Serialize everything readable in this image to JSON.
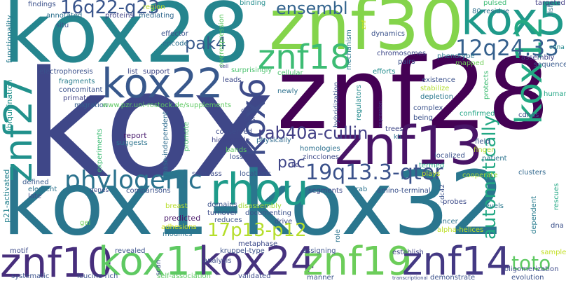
{
  "words": [
    {
      "text": "kox",
      "color": "#3f4788"
    },
    {
      "text": "kox28",
      "color": "#25858e"
    },
    {
      "text": "znf30",
      "color": "#84d44b"
    },
    {
      "text": "znf28",
      "color": "#440154"
    },
    {
      "text": "kox1-kox32",
      "color": "#2a768e"
    },
    {
      "text": "kox5",
      "color": "#1f9a8a"
    },
    {
      "text": "znf27",
      "color": "#21918c"
    },
    {
      "text": "kox22",
      "color": "#38588c"
    },
    {
      "text": "kox6",
      "color": "#3e4c8a"
    },
    {
      "text": "kox12",
      "color": "#23a983"
    },
    {
      "text": "znf13",
      "color": "#481467"
    },
    {
      "text": "znf18",
      "color": "#3dbc74"
    },
    {
      "text": "rhou",
      "color": "#1e9b8a"
    },
    {
      "text": "phylogenic",
      "color": "#2c738e"
    },
    {
      "text": "12q24.33",
      "color": "#35608d"
    },
    {
      "text": "16q22-q23",
      "color": "#39558c"
    },
    {
      "text": "znf10",
      "color": "#472e7c"
    },
    {
      "text": "kox11",
      "color": "#5ec962"
    },
    {
      "text": "kox24",
      "color": "#46327e"
    },
    {
      "text": "znf19",
      "color": "#6ccd5a"
    },
    {
      "text": "znf14",
      "color": "#443983"
    },
    {
      "text": "19q13.3-qter",
      "color": "#3b528b"
    },
    {
      "text": "rab40a-cullin",
      "color": "#424086"
    },
    {
      "text": "ensembl",
      "color": "#33638d"
    },
    {
      "text": "pak4",
      "color": "#38598c"
    },
    {
      "text": "17p13-p12",
      "color": "#b5de2b"
    },
    {
      "text": "automatically",
      "color": "#22a884"
    },
    {
      "text": "toto",
      "color": "#5ec962"
    },
    {
      "text": "pac",
      "color": "#404688"
    },
    {
      "text": "functionality",
      "color": "#287c8e"
    },
    {
      "text": "ubiquitination",
      "color": "#21918c"
    },
    {
      "text": "p21-activated",
      "color": "#26828e"
    },
    {
      "text": "findings",
      "color": "#3b518b"
    },
    {
      "text": "annotated",
      "color": "#2d708e"
    },
    {
      "text": "situ",
      "color": "#3a548c"
    },
    {
      "text": "proteins",
      "color": "#414487"
    },
    {
      "text": "mediating",
      "color": "#31688e"
    },
    {
      "text": "region",
      "color": "#bddf26"
    },
    {
      "text": "effector",
      "color": "#3b528b"
    },
    {
      "text": "encode",
      "color": "#2e6e8e"
    },
    {
      "text": "overexpression",
      "color": "#5ec962"
    },
    {
      "text": "binding",
      "color": "#228c8d"
    },
    {
      "text": "znf",
      "color": "#d2e21b"
    },
    {
      "text": "mechanism",
      "color": "#2a778e"
    },
    {
      "text": "dynamics",
      "color": "#3b528b"
    },
    {
      "text": "pulsed",
      "color": "#3dbc74"
    },
    {
      "text": "80-residue",
      "color": "#2d708e"
    },
    {
      "text": "fish",
      "color": "#2c738e"
    },
    {
      "text": "targeted",
      "color": "#433e85"
    },
    {
      "text": "cdna",
      "color": "#23898e"
    },
    {
      "text": "phenotype",
      "color": "#2a788e"
    },
    {
      "text": "assembly",
      "color": "#414487"
    },
    {
      "text": "sequences",
      "color": "#375a8c"
    },
    {
      "text": "chromosomes",
      "color": "#3e4989"
    },
    {
      "text": "pairs",
      "color": "#3b518b"
    },
    {
      "text": "mapped",
      "color": "#6ece58"
    },
    {
      "text": "cell",
      "color": "#414487"
    },
    {
      "text": "electrophoresis",
      "color": "#3b518b"
    },
    {
      "text": "list",
      "color": "#3e4a89"
    },
    {
      "text": "support",
      "color": "#3f4889"
    },
    {
      "text": "surprisingly",
      "color": "#4ac16d"
    },
    {
      "text": "cellular",
      "color": "#4ac16d"
    },
    {
      "text": "efforts",
      "color": "#228d8d"
    },
    {
      "text": "existence",
      "color": "#3b518b"
    },
    {
      "text": "protects",
      "color": "#3fbc73"
    },
    {
      "text": "human",
      "color": "#21a585"
    },
    {
      "text": "fragments",
      "color": "#287d8e"
    },
    {
      "text": "leads",
      "color": "#3e4a89"
    },
    {
      "text": "concomitant",
      "color": "#3b518b"
    },
    {
      "text": "newly",
      "color": "#2d718e"
    },
    {
      "text": "stabilize",
      "color": "#b0dd2f"
    },
    {
      "text": "primate",
      "color": "#414487"
    },
    {
      "text": "migration",
      "color": "#355f8d"
    },
    {
      "text": "hybridization",
      "color": "#3b518b"
    },
    {
      "text": "depletion",
      "color": "#2a788e"
    },
    {
      "text": "complex",
      "color": "#3b528b"
    },
    {
      "text": "www.pzr.uni-rostock.de/supplements",
      "color": "#5ec962"
    },
    {
      "text": "regulators",
      "color": "#238a8d"
    },
    {
      "text": "being",
      "color": "#3b518b"
    },
    {
      "text": "confirmed",
      "color": "#21a585"
    },
    {
      "text": "cdnas",
      "color": "#3b518b"
    },
    {
      "text": "data",
      "color": "#3e4c8a"
    },
    {
      "text": "cys",
      "color": "#3e4c8a"
    },
    {
      "text": "expression",
      "color": "#443983"
    },
    {
      "text": "trees",
      "color": "#3f4788"
    },
    {
      "text": "kb",
      "color": "#2c728e"
    },
    {
      "text": "report",
      "color": "#481b6d"
    },
    {
      "text": "conserved",
      "color": "#3e4c8a"
    },
    {
      "text": "high-grade",
      "color": "#404588"
    },
    {
      "text": "physically",
      "color": "#2f6b8e"
    },
    {
      "text": "suggests",
      "color": "#2c738e"
    },
    {
      "text": "kinase-independent",
      "color": "#2f6c8e"
    },
    {
      "text": "promote",
      "color": "#4ac16d"
    },
    {
      "text": "experiments",
      "color": "#3dbc74"
    },
    {
      "text": "homologies",
      "color": "#2d708e"
    },
    {
      "text": "zincclones",
      "color": "#3e4a89"
    },
    {
      "text": "field",
      "color": "#3b528b"
    },
    {
      "text": "bands",
      "color": "#5ec962"
    },
    {
      "text": "loss",
      "color": "#3b518b"
    },
    {
      "text": "localized",
      "color": "#3b528b"
    },
    {
      "text": "finger",
      "color": "#b5de2b"
    },
    {
      "text": "patient",
      "color": "#2c738e"
    },
    {
      "text": "termed",
      "color": "#22a785"
    },
    {
      "text": "plays",
      "color": "#bddf26"
    },
    {
      "text": "lie",
      "color": "#414487"
    },
    {
      "text": "subclass",
      "color": "#3e4c8a"
    },
    {
      "text": "locations",
      "color": "#3b528b"
    },
    {
      "text": "cooperate",
      "color": "#a5db36"
    },
    {
      "text": "clusters",
      "color": "#31688e"
    },
    {
      "text": "defined",
      "color": "#38598c"
    },
    {
      "text": "element",
      "color": "#2c738e"
    },
    {
      "text": "genes",
      "color": "#3e4c8a"
    },
    {
      "text": "comparisons",
      "color": "#3b528b"
    },
    {
      "text": "segments",
      "color": "#3e4989"
    },
    {
      "text": "krab",
      "color": "#2c738e"
    },
    {
      "text": "amino-terminal",
      "color": "#3b528b"
    },
    {
      "text": "cdc42",
      "color": "#3b528b"
    },
    {
      "text": "levels",
      "color": "#2a788e"
    },
    {
      "text": "dependent",
      "color": "#287c8e"
    },
    {
      "text": "rescues",
      "color": "#22a884"
    },
    {
      "text": "late",
      "color": "#3e4c8a"
    },
    {
      "text": "breast",
      "color": "#b8de29"
    },
    {
      "text": "domains",
      "color": "#3b528b"
    },
    {
      "text": "turnover",
      "color": "#3e4c8a"
    },
    {
      "text": "disassembly",
      "color": "#a2da37"
    },
    {
      "text": "probes",
      "color": "#3e4c8a"
    },
    {
      "text": "gel",
      "color": "#6ece58"
    },
    {
      "text": "predicted",
      "color": "#481769"
    },
    {
      "text": "reduces",
      "color": "#3b528b"
    },
    {
      "text": "documenting",
      "color": "#3b528b"
    },
    {
      "text": "drive",
      "color": "#3e4c8a"
    },
    {
      "text": "cancer",
      "color": "#2c738e"
    },
    {
      "text": "alpha-helices",
      "color": "#bddf26"
    },
    {
      "text": "dna",
      "color": "#3b518b"
    },
    {
      "text": "adhesions",
      "color": "#d2e21b"
    },
    {
      "text": "modifies",
      "color": "#2c738e"
    },
    {
      "text": "metaphase",
      "color": "#3e4c8a"
    },
    {
      "text": "kruppel-type",
      "color": "#3b528b"
    },
    {
      "text": "motif",
      "color": "#3e4c8a"
    },
    {
      "text": "revealed",
      "color": "#3b528b"
    },
    {
      "text": "scan",
      "color": "#3e4c8a"
    },
    {
      "text": "analysis",
      "color": "#3e4c8a"
    },
    {
      "text": "assigning",
      "color": "#3b528b"
    },
    {
      "text": "role",
      "color": "#2c738e"
    },
    {
      "text": "establish",
      "color": "#414487"
    },
    {
      "text": "samples",
      "color": "#c2df23"
    },
    {
      "text": "oligomerization",
      "color": "#3e4c8a"
    },
    {
      "text": "systematic",
      "color": "#3b528b"
    },
    {
      "text": "leucine-rich",
      "color": "#3b528b"
    },
    {
      "text": "self-association",
      "color": "#5ec962"
    },
    {
      "text": "validated",
      "color": "#3e4c8a"
    },
    {
      "text": "manner",
      "color": "#3b528b"
    },
    {
      "text": "transcriptional",
      "color": "#3e4c8a"
    },
    {
      "text": "demonstrate",
      "color": "#3b528b"
    },
    {
      "text": "evolution",
      "color": "#3b528b"
    }
  ]
}
